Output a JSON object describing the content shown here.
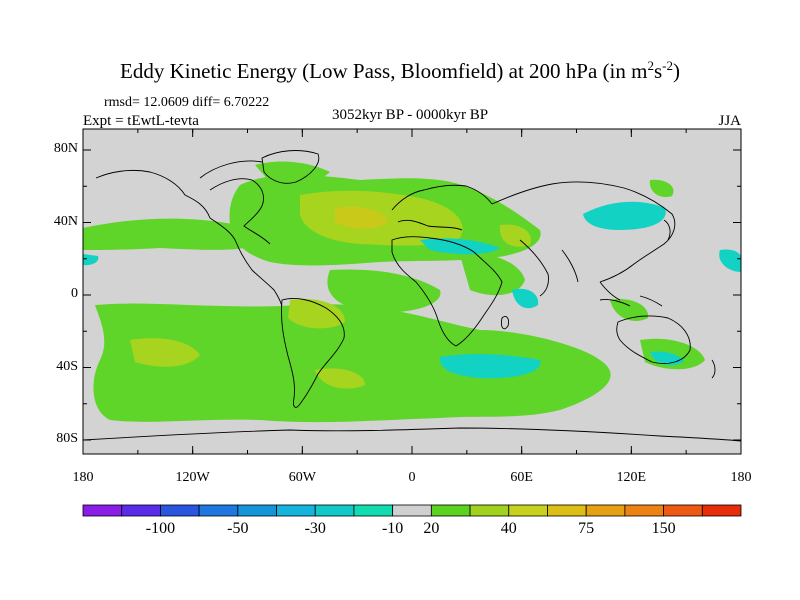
{
  "header": {
    "title_main": "Eddy Kinetic Energy (Low Pass, Bloomfield) at 200 hPa (in m",
    "title_sup1": "2",
    "title_mid": "s",
    "title_sup2": "-2",
    "title_end": ")",
    "stats": "rmsd= 12.0609 diff= 6.70222",
    "experiment": "Expt = tEwtL-tevta",
    "period": "3052kyr BP - 0000kyr BP",
    "season": "JJA"
  },
  "axes": {
    "lat_labels": [
      "80N",
      "40N",
      "0",
      "40S",
      "80S"
    ],
    "lat_values": [
      80,
      40,
      0,
      -40,
      -80
    ],
    "lon_labels": [
      "180",
      "120W",
      "60W",
      "0",
      "60E",
      "120E",
      "180"
    ],
    "lon_values": [
      -180,
      -120,
      -60,
      0,
      60,
      120,
      180
    ]
  },
  "colorbar": {
    "labels": [
      "-100",
      "-50",
      "-30",
      "-10",
      "20",
      "40",
      "75",
      "150"
    ],
    "colors": [
      "#8a1ee6",
      "#5a2be8",
      "#2a55e0",
      "#1e78e0",
      "#1296d8",
      "#14b4dc",
      "#12c8c8",
      "#10dcb0",
      "#d0d0d0",
      "#5ad21e",
      "#a0d21e",
      "#c8d21e",
      "#dcbe14",
      "#e6a014",
      "#ec8214",
      "#ee5a14",
      "#e62c0a"
    ]
  },
  "map_colors": {
    "ocean_neutral": "#d3d3d3",
    "positive_low": "#5fd52a",
    "positive_mid": "#a6d41f",
    "positive_high": "#c9c91a",
    "negative": "#12d2c4"
  }
}
